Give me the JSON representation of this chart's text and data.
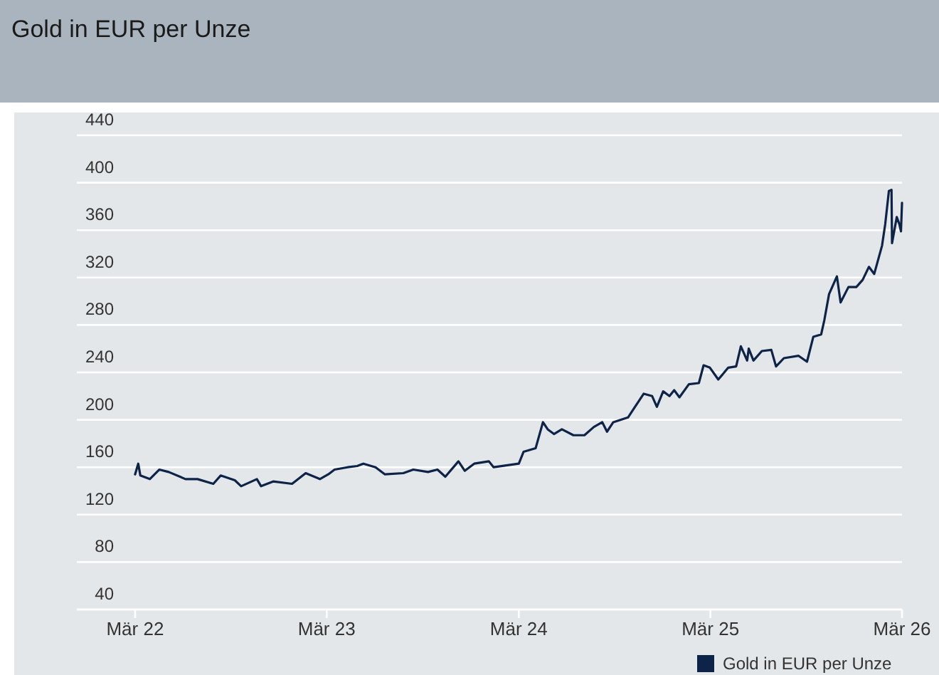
{
  "chart_data": {
    "type": "line",
    "title": "Gold in EUR per Unze",
    "x": [
      "2022-03-01",
      "2022-03-07",
      "2022-03-11",
      "2022-03-29",
      "2022-04-16",
      "2022-05-04",
      "2022-06-05",
      "2022-06-28",
      "2022-07-28",
      "2022-08-11",
      "2022-09-07",
      "2022-09-19",
      "2022-10-19",
      "2022-10-27",
      "2022-11-19",
      "2022-12-25",
      "2023-01-20",
      "2023-02-16",
      "2023-03-04",
      "2023-03-16",
      "2023-04-10",
      "2023-04-28",
      "2023-05-10",
      "2023-06-02",
      "2023-06-20",
      "2023-07-25",
      "2023-08-13",
      "2023-09-10",
      "2023-09-28",
      "2023-10-13",
      "2023-11-07",
      "2023-11-19",
      "2023-12-07",
      "2024-01-04",
      "2024-01-13",
      "2024-03-01",
      "2024-03-10",
      "2024-04-02",
      "2024-04-16",
      "2024-04-25",
      "2024-05-07",
      "2024-05-22",
      "2024-06-13",
      "2024-07-04",
      "2024-07-22",
      "2024-08-07",
      "2024-08-16",
      "2024-08-28",
      "2024-09-25",
      "2024-10-07",
      "2024-10-25",
      "2024-11-10",
      "2024-11-19",
      "2024-12-01",
      "2024-12-13",
      "2024-12-22",
      "2025-01-01",
      "2025-01-19",
      "2025-02-07",
      "2025-02-16",
      "2025-02-28",
      "2025-03-16",
      "2025-04-04",
      "2025-04-19",
      "2025-04-28",
      "2025-05-10",
      "2025-05-13",
      "2025-05-22",
      "2025-06-07",
      "2025-06-25",
      "2025-07-04",
      "2025-07-19",
      "2025-08-16",
      "2025-09-01",
      "2025-09-13",
      "2025-09-28",
      "2025-10-04",
      "2025-10-13",
      "2025-10-28",
      "2025-11-04",
      "2025-11-19",
      "2025-12-04",
      "2025-12-16",
      "2025-12-28",
      "2026-01-07",
      "2026-01-22",
      "2026-01-28",
      "2026-02-04",
      "2026-02-09",
      "2026-02-10",
      "2026-02-19",
      "2026-02-24",
      "2026-02-27",
      "2026-03-01"
    ],
    "series": [
      {
        "name": "Gold in EUR per Unze",
        "color": "#0d2348",
        "values": [
          154,
          163,
          153,
          150,
          158,
          156,
          150,
          150,
          146,
          153,
          149,
          144,
          150,
          144,
          148,
          146,
          155,
          150,
          154,
          158,
          160,
          161,
          163,
          160,
          154,
          155,
          158,
          156,
          158,
          152,
          165,
          157,
          163,
          165,
          160,
          163,
          173,
          176,
          198,
          192,
          188,
          192,
          187,
          187,
          194,
          198,
          190,
          198,
          202,
          210,
          222,
          220,
          211,
          224,
          220,
          225,
          219,
          230,
          231,
          246,
          244,
          234,
          244,
          245,
          262,
          250,
          260,
          250,
          258,
          259,
          245,
          252,
          254,
          249,
          270,
          272,
          284,
          306,
          321,
          299,
          312,
          312,
          318,
          329,
          323,
          347,
          365,
          393,
          394,
          349,
          371,
          365,
          359,
          383
        ]
      }
    ],
    "xlim": [
      "2021-11-10",
      "2026-03-01"
    ],
    "xticks": [
      {
        "value": "2022-03-01",
        "label": "Mär 22"
      },
      {
        "value": "2023-03-01",
        "label": "Mär 23"
      },
      {
        "value": "2024-03-01",
        "label": "Mär 24"
      },
      {
        "value": "2025-03-01",
        "label": "Mär 25"
      },
      {
        "value": "2026-03-01",
        "label": "Mär 26"
      }
    ],
    "ylim": [
      40,
      440
    ],
    "yticks": [
      40,
      80,
      120,
      160,
      200,
      240,
      280,
      320,
      360,
      400,
      440
    ],
    "grid": "y",
    "legend": "bottom right",
    "line_style": "solid",
    "marker": "none"
  }
}
